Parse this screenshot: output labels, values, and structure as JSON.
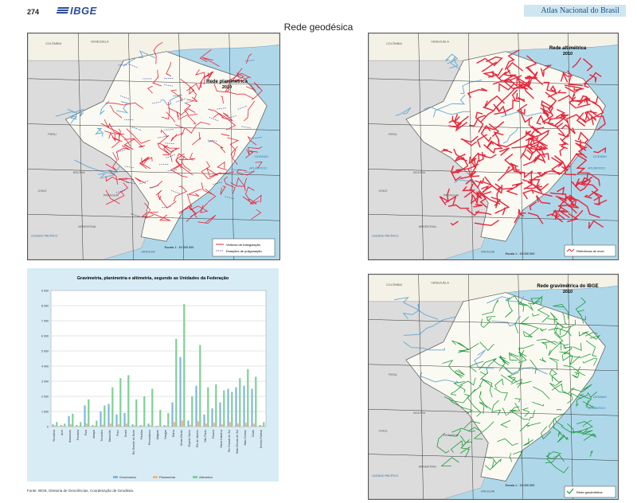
{
  "header": {
    "page_number": "274",
    "logo_text": "IBGE",
    "atlas_name": "Atlas Nacional do Brasil",
    "page_title": "Rede geodésica"
  },
  "maps": {
    "planimetric": {
      "title_line1": "Rede planimétrica",
      "title_line2": "2010",
      "legend": [
        "Vértices de triangulação",
        "Estações de poligonação"
      ],
      "color": "#e8253a",
      "scale_label": "Escala 1 : 15 000 000"
    },
    "altimetric": {
      "title_line1": "Rede altimétrica",
      "title_line2": "2010",
      "legend": [
        "Referência de nível"
      ],
      "color": "#e8253a",
      "scale_label": "Escala 1 : 15 000 000"
    },
    "gravimetric": {
      "title_line1": "Rede gravimétrica do IBGE",
      "title_line2": "2010",
      "legend": [
        "Rede gravimétrica"
      ],
      "color": "#1e9a3a",
      "scale_label": "Escala 1 : 15 000 000"
    },
    "ocean_labels": [
      "OCEANO",
      "ATLÂNTICO",
      "OCEANO PACÍFICO"
    ],
    "country_labels": [
      "COLÔMBIA",
      "VENEZUELA",
      "PERU",
      "BOLÍVIA",
      "PARAGUAI",
      "ARGENTINA",
      "URUGUAI",
      "CHILE"
    ]
  },
  "chart_data": {
    "type": "bar",
    "title": "Gravimetria, planimetria e altimetria, segundo as Unidades da Federação",
    "ylim": [
      0,
      9000
    ],
    "yticks": [
      "9 000",
      "8 000",
      "7 000",
      "6 000",
      "5 000",
      "4 000",
      "3 000",
      "2 000",
      "1 000",
      "0"
    ],
    "categories": [
      "Rondônia",
      "Acre",
      "Amazonas",
      "Roraima",
      "Pará",
      "Amapá",
      "Tocantins",
      "Maranhão",
      "Piauí",
      "Ceará",
      "Rio Grande do Norte",
      "Paraíba",
      "Pernambuco",
      "Alagoas",
      "Sergipe",
      "Bahia",
      "Minas Gerais",
      "Espírito Santo",
      "Rio de Janeiro",
      "São Paulo",
      "Paraná",
      "Santa Catarina",
      "Rio Grande do Sul",
      "Mato Grosso do Sul",
      "Mato Grosso",
      "Goiás",
      "Distrito Federal"
    ],
    "series": [
      {
        "name": "Gravimetria",
        "color": "#7fb6e0",
        "values": [
          150,
          100,
          700,
          100,
          1400,
          100,
          1000,
          1500,
          800,
          900,
          150,
          100,
          200,
          50,
          100,
          1600,
          4600,
          400,
          2700,
          800,
          1200,
          1600,
          2500,
          2600,
          2700,
          2500,
          100
        ]
      },
      {
        "name": "Planimetria",
        "color": "#f2b97a",
        "values": [
          80,
          50,
          150,
          40,
          200,
          50,
          120,
          200,
          150,
          200,
          70,
          60,
          80,
          40,
          50,
          300,
          400,
          120,
          350,
          200,
          250,
          150,
          300,
          200,
          250,
          200,
          60
        ]
      },
      {
        "name": "Altimetria",
        "color": "#7fcf98",
        "values": [
          300,
          200,
          850,
          300,
          1800,
          400,
          1400,
          2600,
          3200,
          3400,
          1800,
          2000,
          2500,
          1100,
          900,
          5800,
          8100,
          2000,
          5400,
          2600,
          2800,
          2400,
          2300,
          3200,
          3800,
          3300,
          300
        ]
      }
    ]
  },
  "footer": {
    "source": "Fonte: IBGE, Diretoria de Geociências, Coordenação de Geodésia."
  }
}
